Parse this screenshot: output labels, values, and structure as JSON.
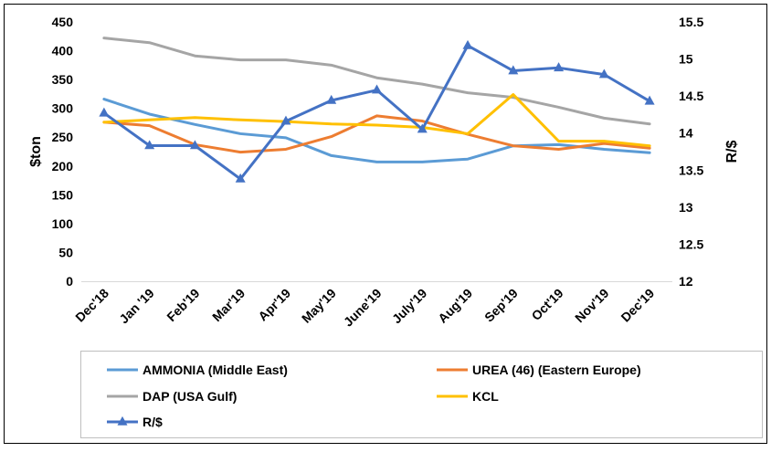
{
  "chart_data": {
    "type": "line",
    "title": "",
    "categories": [
      "Dec'18",
      "Jan '19",
      "Feb'19",
      "Mar'19",
      "Apr'19",
      "May'19",
      "June'19",
      "July'19",
      "Aug'19",
      "Sep'19",
      "Oct'19",
      "Nov'19",
      "Dec'19"
    ],
    "ylabel": "$ton",
    "y2label": "R/$",
    "ylim": [
      0,
      450
    ],
    "yticks": [
      "0",
      "50",
      "100",
      "150",
      "200",
      "250",
      "300",
      "350",
      "400",
      "450"
    ],
    "y2lim": [
      12,
      15.5
    ],
    "y2ticks": [
      "12",
      "12.5",
      "13",
      "13.5",
      "14",
      "14.5",
      "15",
      "15.5"
    ],
    "grid": false,
    "legend_position": "bottom",
    "series": [
      {
        "name": "AMMONIA (Middle East)",
        "axis": "left",
        "color": "#5B9BD5",
        "marker": "none",
        "values": [
          316,
          290,
          272,
          256,
          249,
          218,
          207,
          207,
          212,
          235,
          237,
          229,
          223
        ]
      },
      {
        "name": "UREA (46) (Eastern Europe)",
        "axis": "left",
        "color": "#ED7D31",
        "marker": "none",
        "values": [
          276,
          270,
          237,
          224,
          229,
          251,
          287,
          278,
          255,
          235,
          229,
          239,
          231
        ]
      },
      {
        "name": "DAP (USA Gulf)",
        "axis": "left",
        "color": "#A5A5A5",
        "marker": "none",
        "values": [
          422,
          414,
          391,
          384,
          384,
          375,
          353,
          342,
          327,
          319,
          302,
          283,
          273
        ]
      },
      {
        "name": "KCL",
        "axis": "left",
        "color": "#FFC000",
        "marker": "none",
        "values": [
          276,
          280,
          284,
          280,
          277,
          273,
          271,
          267,
          256,
          324,
          243,
          243,
          235
        ]
      },
      {
        "name": "R/$",
        "axis": "right",
        "color": "#4472C4",
        "marker": "triangle",
        "values": [
          14.27,
          13.83,
          13.83,
          13.38,
          14.16,
          14.44,
          14.58,
          14.05,
          15.18,
          14.84,
          14.88,
          14.79,
          14.43
        ]
      }
    ]
  }
}
